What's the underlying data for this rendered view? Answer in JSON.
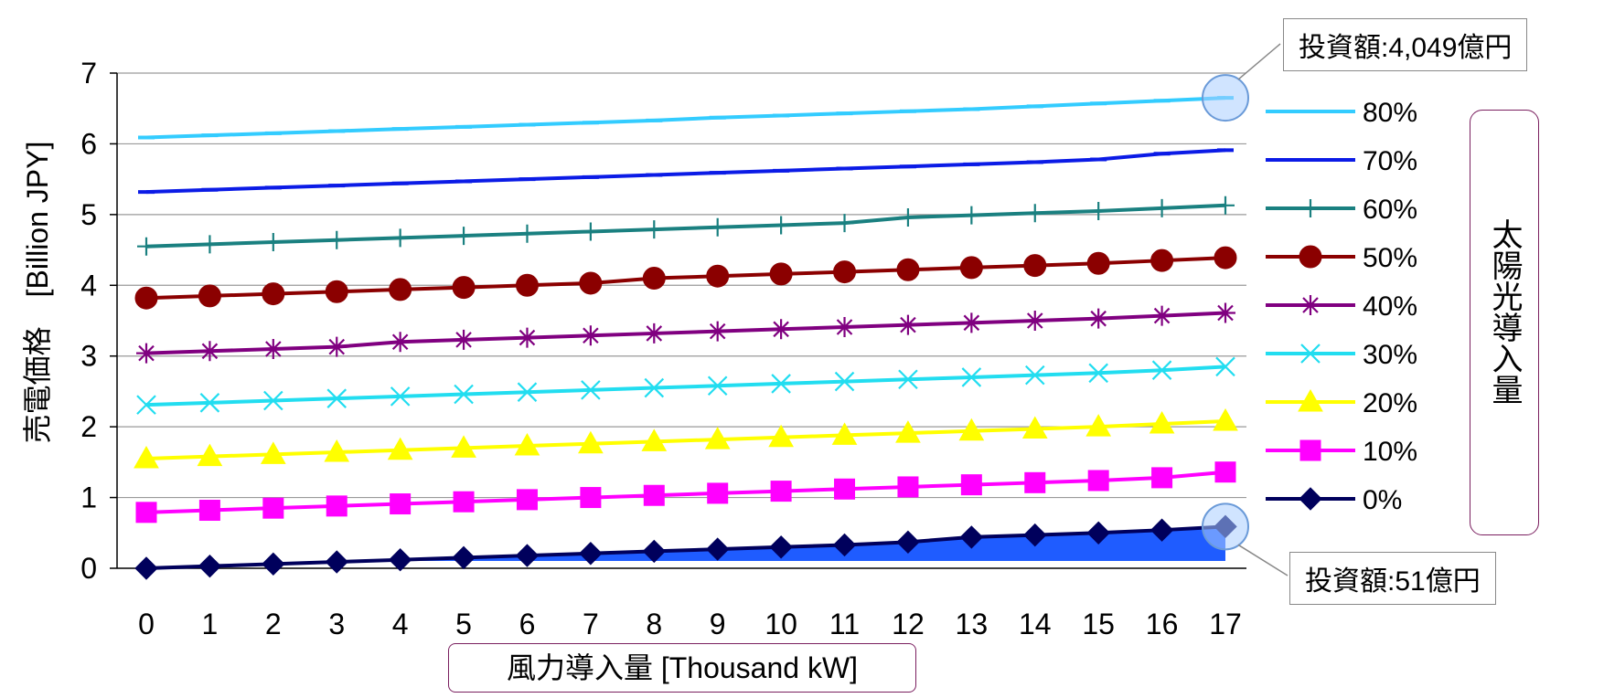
{
  "chart_data": {
    "type": "line",
    "xlabel": "風力導入量 [Thousand kW]",
    "ylabel": "売電価格　[Billion JPY]",
    "x": [
      0,
      1,
      2,
      3,
      4,
      5,
      6,
      7,
      8,
      9,
      10,
      11,
      12,
      13,
      14,
      15,
      16,
      17
    ],
    "xlim": [
      0,
      17
    ],
    "ylim": [
      0,
      7
    ],
    "yticks": [
      0,
      1,
      2,
      3,
      4,
      5,
      6,
      7
    ],
    "grid": "horizontal",
    "legend_title": "太陽光導入量",
    "legend_position": "right",
    "series": [
      {
        "name": "80%",
        "color": "#33ccff",
        "marker": "dash",
        "values": [
          6.09,
          6.12,
          6.15,
          6.18,
          6.21,
          6.24,
          6.27,
          6.3,
          6.33,
          6.37,
          6.4,
          6.43,
          6.46,
          6.49,
          6.53,
          6.57,
          6.61,
          6.65
        ]
      },
      {
        "name": "70%",
        "color": "#0b1be6",
        "marker": "dash",
        "values": [
          5.32,
          5.35,
          5.38,
          5.41,
          5.44,
          5.47,
          5.5,
          5.53,
          5.56,
          5.59,
          5.62,
          5.65,
          5.68,
          5.71,
          5.74,
          5.78,
          5.86,
          5.91
        ]
      },
      {
        "name": "60%",
        "color": "#1a8080",
        "marker": "plus",
        "values": [
          4.55,
          4.58,
          4.61,
          4.64,
          4.67,
          4.7,
          4.73,
          4.76,
          4.79,
          4.82,
          4.85,
          4.88,
          4.96,
          4.99,
          5.02,
          5.05,
          5.09,
          5.13
        ]
      },
      {
        "name": "50%",
        "color": "#8b0000",
        "marker": "circle",
        "values": [
          3.82,
          3.85,
          3.88,
          3.91,
          3.94,
          3.97,
          4.0,
          4.03,
          4.1,
          4.13,
          4.16,
          4.19,
          4.22,
          4.25,
          4.28,
          4.31,
          4.35,
          4.39
        ]
      },
      {
        "name": "40%",
        "color": "#800080",
        "marker": "star",
        "values": [
          3.04,
          3.07,
          3.1,
          3.13,
          3.2,
          3.23,
          3.26,
          3.29,
          3.32,
          3.35,
          3.38,
          3.41,
          3.44,
          3.47,
          3.5,
          3.53,
          3.57,
          3.61
        ]
      },
      {
        "name": "30%",
        "color": "#22ddf0",
        "marker": "x",
        "values": [
          2.31,
          2.34,
          2.37,
          2.4,
          2.43,
          2.46,
          2.49,
          2.52,
          2.55,
          2.58,
          2.61,
          2.64,
          2.67,
          2.7,
          2.73,
          2.76,
          2.8,
          2.85
        ]
      },
      {
        "name": "20%",
        "color": "#ffff00",
        "marker": "triangle",
        "values": [
          1.55,
          1.58,
          1.61,
          1.64,
          1.67,
          1.7,
          1.73,
          1.76,
          1.79,
          1.82,
          1.85,
          1.88,
          1.91,
          1.94,
          1.97,
          2.0,
          2.04,
          2.08
        ]
      },
      {
        "name": "10%",
        "color": "#ff00ff",
        "marker": "square",
        "values": [
          0.79,
          0.82,
          0.85,
          0.88,
          0.91,
          0.94,
          0.97,
          1.0,
          1.03,
          1.06,
          1.09,
          1.12,
          1.15,
          1.18,
          1.21,
          1.24,
          1.28,
          1.36
        ]
      },
      {
        "name": "0%",
        "color": "#00005c",
        "marker": "diamond",
        "values": [
          0.0,
          0.03,
          0.06,
          0.09,
          0.12,
          0.15,
          0.18,
          0.21,
          0.24,
          0.27,
          0.3,
          0.33,
          0.37,
          0.44,
          0.47,
          0.5,
          0.54,
          0.59
        ]
      }
    ],
    "annotations": {
      "top": "投資額:4,049億円",
      "bottom": "投資額:51億円"
    },
    "highlight_fill_color": "#1f5cff"
  }
}
